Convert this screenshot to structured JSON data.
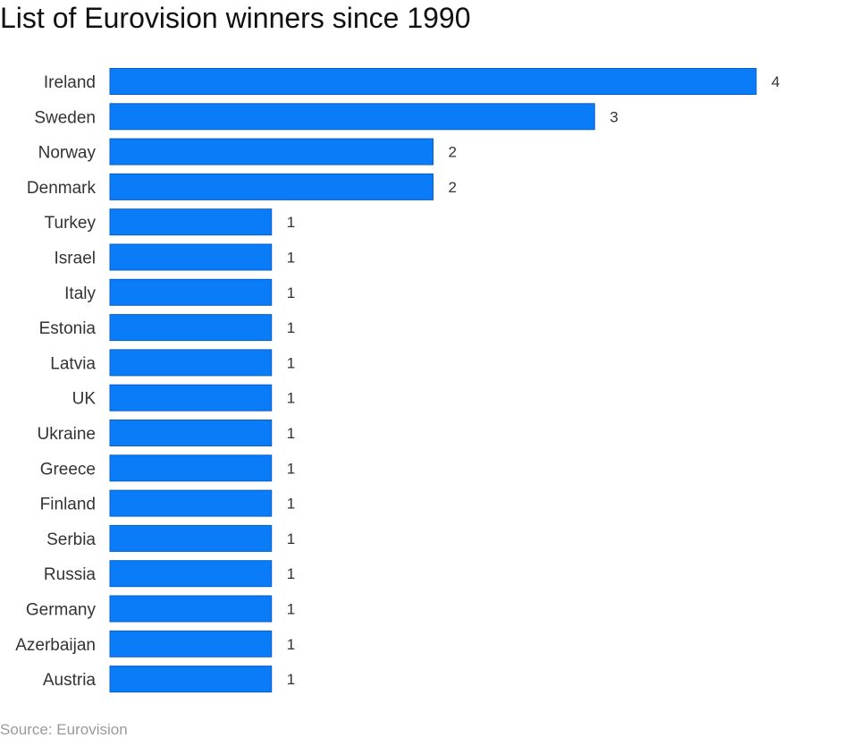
{
  "chart_data": {
    "type": "bar",
    "orientation": "horizontal",
    "title": "List of Eurovision winners since 1990",
    "categories": [
      "Ireland",
      "Sweden",
      "Norway",
      "Denmark",
      "Turkey",
      "Israel",
      "Italy",
      "Estonia",
      "Latvia",
      "UK",
      "Ukraine",
      "Greece",
      "Finland",
      "Serbia",
      "Russia",
      "Germany",
      "Azerbaijan",
      "Austria"
    ],
    "values": [
      4,
      3,
      2,
      2,
      1,
      1,
      1,
      1,
      1,
      1,
      1,
      1,
      1,
      1,
      1,
      1,
      1,
      1
    ],
    "xlabel": "",
    "ylabel": "",
    "xlim": [
      0,
      4
    ],
    "grid": false,
    "bar_color": "#0a7cf7",
    "bar_edge_color": "#0a5fc4"
  },
  "source": "Source: Eurovision"
}
